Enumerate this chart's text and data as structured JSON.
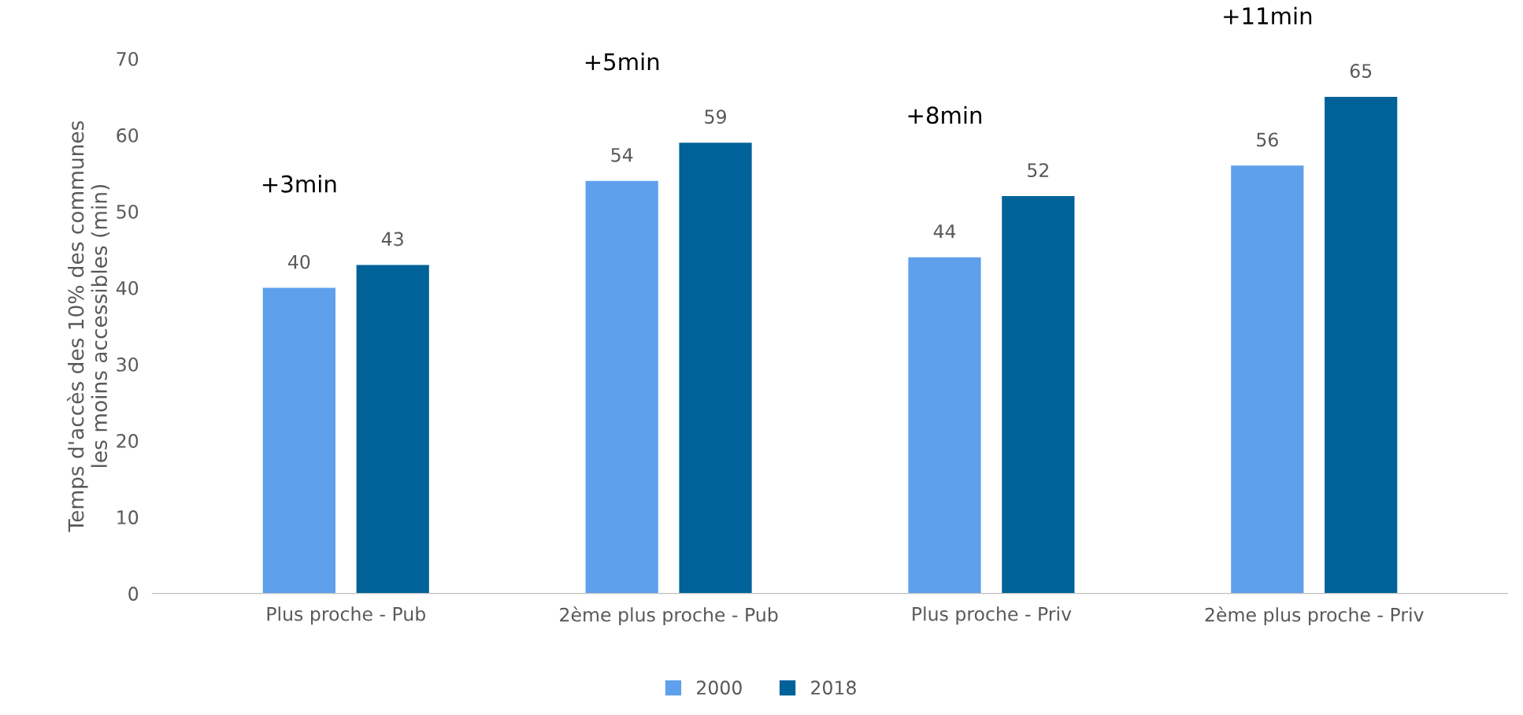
{
  "chart_data": {
    "type": "bar",
    "ylabel": "Temps d'accès des 10% des communes\nles moins accessibles (min)",
    "categories": [
      "Plus proche - Pub",
      "2ème plus proche - Pub",
      "Plus proche - Priv",
      "2ème plus proche - Priv"
    ],
    "series": [
      {
        "name": "2000",
        "color": "#5fa0ec",
        "values": [
          40,
          54,
          44,
          56
        ]
      },
      {
        "name": "2018",
        "color": "#006298",
        "values": [
          43,
          59,
          52,
          65
        ]
      }
    ],
    "ylim": [
      0,
      70
    ],
    "yticks": [
      0,
      10,
      20,
      30,
      40,
      50,
      60,
      70
    ],
    "data_labels": true,
    "grid": false,
    "legend": "bottom",
    "annotations": [
      "+3min",
      "+5min",
      "+8min",
      "+11min"
    ]
  }
}
